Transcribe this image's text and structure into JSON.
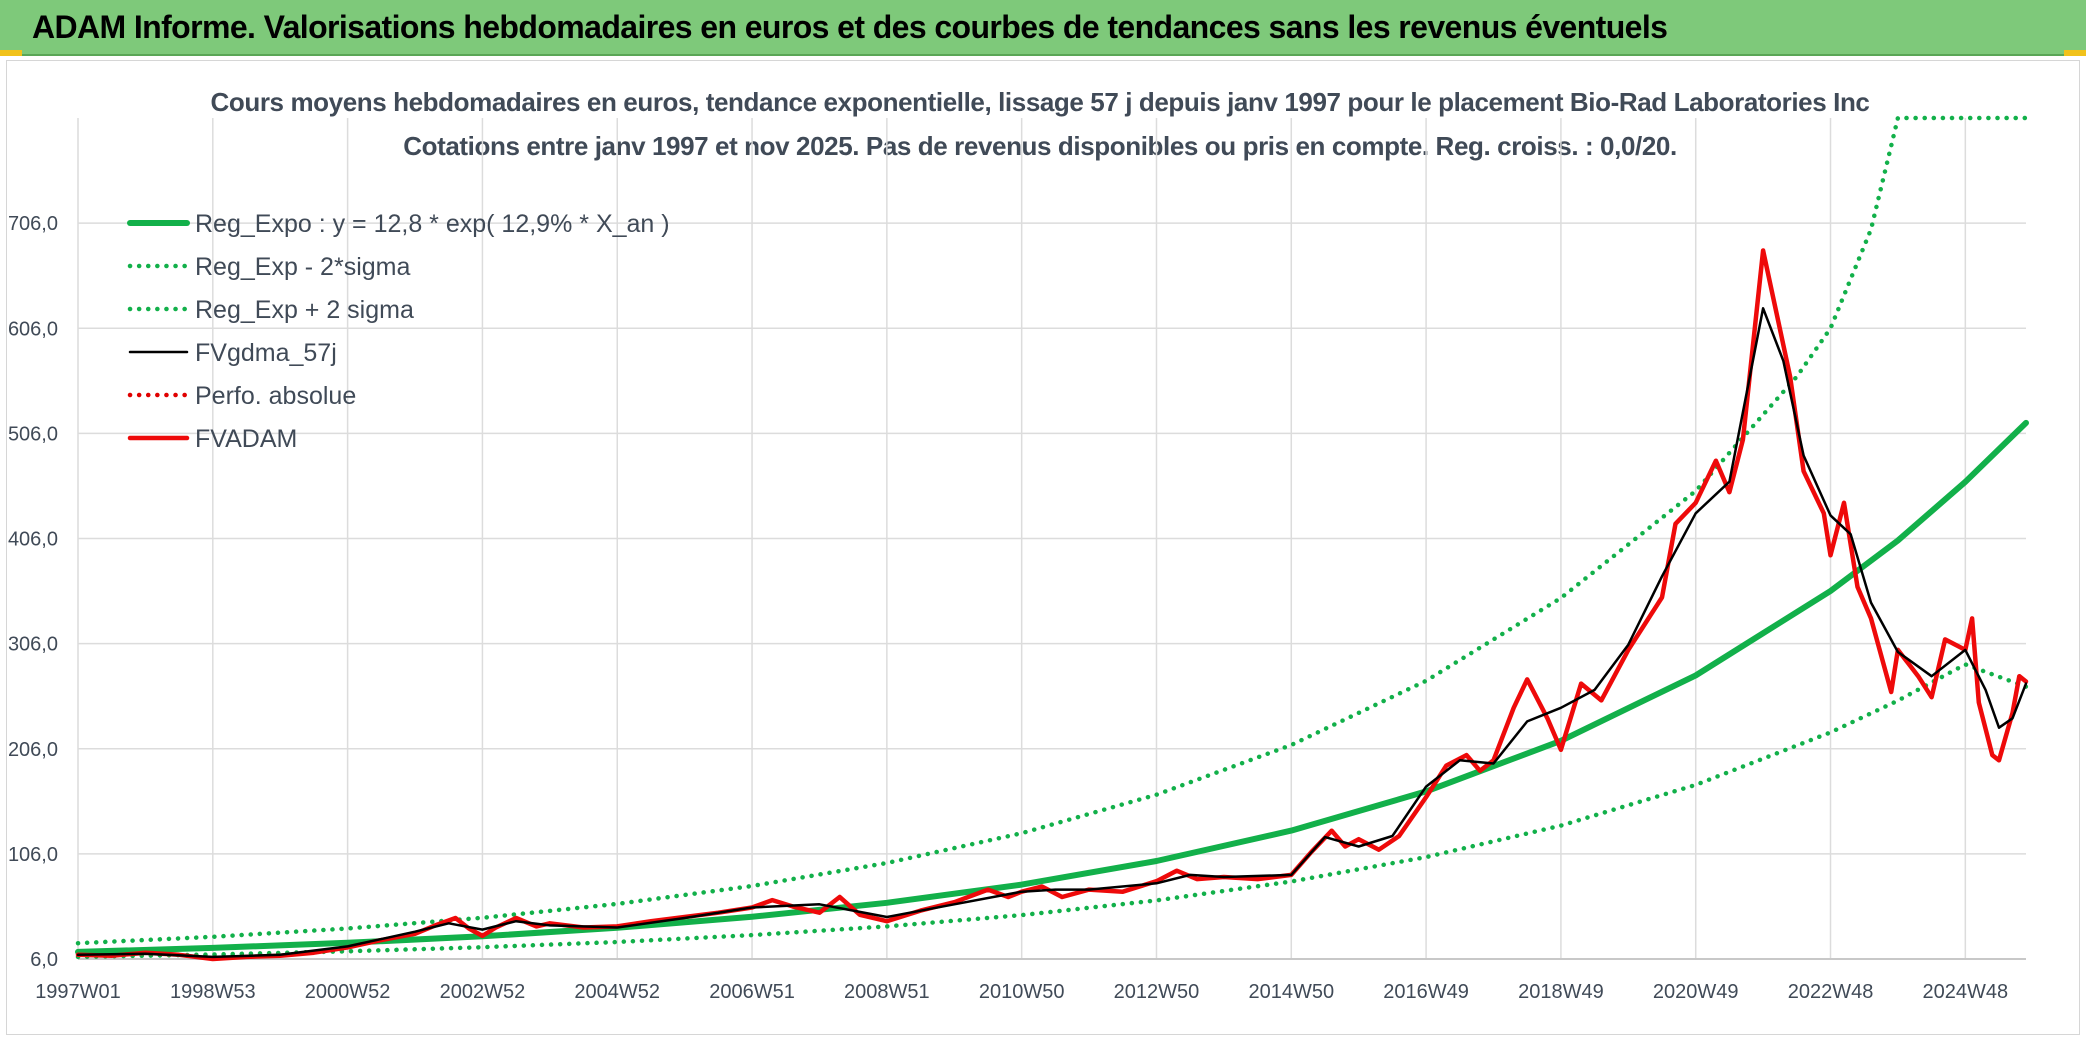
{
  "header": {
    "title": "ADAM Informe. Valorisations hebdomadaires en euros et des courbes de tendances sans les revenus éventuels"
  },
  "colors": {
    "header_bg": "#7ec97a",
    "regression": "#12b04a",
    "sigma_bands": "#12b04a",
    "fvgdma": "#000000",
    "perfo": "#e00000",
    "fvadam": "#ee0a0a",
    "grid": "#dcdcdc",
    "text": "#404a57"
  },
  "chart_data": {
    "type": "line",
    "title": "Cours moyens hebdomadaires en euros, tendance exponentielle, lissage 57 j depuis janv 1997 pour le placement Bio-Rad Laboratories Inc",
    "subtitle": "Cotations entre janv 1997 et nov 2025. Pas de revenus disponibles ou pris en compte. Reg. croiss. : 0,0/20.",
    "x_range": [
      1997.0,
      2025.9
    ],
    "ylim": [
      6,
      806
    ],
    "grid": true,
    "legend_placement": "top-left",
    "y_ticks": [
      "6,0",
      "106,0",
      "206,0",
      "306,0",
      "406,0",
      "506,0",
      "606,0",
      "706,0"
    ],
    "y_tick_values": [
      6,
      106,
      206,
      306,
      406,
      506,
      606,
      706
    ],
    "x_ticks": [
      "1997W01",
      "1998W53",
      "2000W52",
      "2002W52",
      "2004W52",
      "2006W51",
      "2008W51",
      "2010W50",
      "2012W50",
      "2014W50",
      "2016W49",
      "2018W49",
      "2020W49",
      "2022W48",
      "2024W48"
    ],
    "x_tick_values": [
      1997.0,
      1999.0,
      2001.0,
      2003.0,
      2005.0,
      2007.0,
      2009.0,
      2011.0,
      2013.0,
      2015.0,
      2017.0,
      2019.0,
      2021.0,
      2023.0,
      2025.0
    ],
    "series": [
      {
        "name": "Reg_Expo : y = 12,8 * exp( 12,9% *  X_an )",
        "style": "solid-thick",
        "color": "#12b04a",
        "points": [
          [
            1997.0,
            12.8
          ],
          [
            1999.0,
            16.6
          ],
          [
            2001.0,
            21.4
          ],
          [
            2003.0,
            27.6
          ],
          [
            2005.0,
            35.7
          ],
          [
            2007.0,
            46.1
          ],
          [
            2009.0,
            59.5
          ],
          [
            2011.0,
            76.8
          ],
          [
            2013.0,
            99.2
          ],
          [
            2015.0,
            128.1
          ],
          [
            2017.0,
            165.4
          ],
          [
            2019.0,
            213.6
          ],
          [
            2021.0,
            275.8
          ],
          [
            2023.0,
            356.1
          ],
          [
            2024.0,
            404.1
          ],
          [
            2025.0,
            459.8
          ],
          [
            2025.9,
            516.0
          ]
        ]
      },
      {
        "name": "Reg_Exp - 2*sigma",
        "style": "dotted",
        "color": "#12b04a",
        "points": [
          [
            1997.0,
            8
          ],
          [
            1999.0,
            10.3
          ],
          [
            2001.0,
            13.3
          ],
          [
            2003.0,
            17.2
          ],
          [
            2005.0,
            22.2
          ],
          [
            2007.0,
            28.7
          ],
          [
            2009.0,
            37
          ],
          [
            2011.0,
            47.8
          ],
          [
            2013.0,
            61.7
          ],
          [
            2015.0,
            79.7
          ],
          [
            2017.0,
            102.9
          ],
          [
            2019.0,
            132.9
          ],
          [
            2021.0,
            171.6
          ],
          [
            2023.0,
            221.6
          ],
          [
            2024.0,
            251.8
          ],
          [
            2025.0,
            286.2
          ],
          [
            2025.9,
            265
          ]
        ]
      },
      {
        "name": "Reg_Exp + 2 sigma",
        "style": "dotted",
        "color": "#12b04a",
        "points": [
          [
            1997.0,
            21
          ],
          [
            1999.0,
            27.1
          ],
          [
            2001.0,
            35
          ],
          [
            2003.0,
            45.2
          ],
          [
            2005.0,
            58.4
          ],
          [
            2007.0,
            75.4
          ],
          [
            2009.0,
            97.3
          ],
          [
            2011.0,
            125.7
          ],
          [
            2013.0,
            162.3
          ],
          [
            2015.0,
            209.6
          ],
          [
            2017.0,
            270.6
          ],
          [
            2019.0,
            349.4
          ],
          [
            2021.0,
            451.2
          ],
          [
            2022.5,
            560
          ],
          [
            2023.0,
            606
          ],
          [
            2023.6,
            700
          ],
          [
            2024.0,
            806
          ],
          [
            2025.9,
            806
          ]
        ]
      },
      {
        "name": "FVgdma_57j",
        "style": "solid",
        "color": "#000000",
        "points": [
          [
            1997.0,
            10
          ],
          [
            1998.0,
            11
          ],
          [
            1999.0,
            8
          ],
          [
            2000.0,
            10
          ],
          [
            2001.0,
            18
          ],
          [
            2002.0,
            32
          ],
          [
            2002.5,
            40
          ],
          [
            2003.0,
            34
          ],
          [
            2003.5,
            42
          ],
          [
            2004.0,
            38
          ],
          [
            2005.0,
            36
          ],
          [
            2006.0,
            45
          ],
          [
            2007.0,
            55
          ],
          [
            2008.0,
            58
          ],
          [
            2008.5,
            52
          ],
          [
            2009.0,
            46
          ],
          [
            2010.0,
            58
          ],
          [
            2011.0,
            70
          ],
          [
            2011.5,
            72
          ],
          [
            2012.0,
            72
          ],
          [
            2013.0,
            78
          ],
          [
            2013.5,
            86
          ],
          [
            2014.0,
            84
          ],
          [
            2015.0,
            86
          ],
          [
            2015.5,
            122
          ],
          [
            2016.0,
            113
          ],
          [
            2016.5,
            123
          ],
          [
            2017.0,
            170
          ],
          [
            2017.5,
            195
          ],
          [
            2018.0,
            192
          ],
          [
            2018.5,
            232
          ],
          [
            2019.0,
            245
          ],
          [
            2019.5,
            262
          ],
          [
            2020.0,
            305
          ],
          [
            2020.5,
            370
          ],
          [
            2021.0,
            430
          ],
          [
            2021.5,
            460
          ],
          [
            2022.0,
            625
          ],
          [
            2022.3,
            575
          ],
          [
            2022.6,
            485
          ],
          [
            2023.0,
            428
          ],
          [
            2023.3,
            410
          ],
          [
            2023.6,
            345
          ],
          [
            2024.0,
            298
          ],
          [
            2024.5,
            275
          ],
          [
            2025.0,
            300
          ],
          [
            2025.3,
            262
          ],
          [
            2025.5,
            226
          ],
          [
            2025.7,
            235
          ],
          [
            2025.9,
            268
          ]
        ]
      },
      {
        "name": "Perfo. absolue",
        "style": "dotted",
        "color": "#e00000",
        "points": []
      },
      {
        "name": "FVADAM",
        "style": "solid-thick",
        "color": "#ee0a0a",
        "points": [
          [
            1997.0,
            10
          ],
          [
            1997.5,
            9
          ],
          [
            1998.0,
            12
          ],
          [
            1998.5,
            10
          ],
          [
            1999.0,
            6
          ],
          [
            1999.5,
            8
          ],
          [
            2000.0,
            9
          ],
          [
            2000.5,
            12
          ],
          [
            2001.0,
            17
          ],
          [
            2001.5,
            24
          ],
          [
            2002.0,
            30
          ],
          [
            2002.3,
            38
          ],
          [
            2002.6,
            45
          ],
          [
            2002.8,
            35
          ],
          [
            2003.0,
            28
          ],
          [
            2003.2,
            36
          ],
          [
            2003.5,
            45
          ],
          [
            2003.8,
            37
          ],
          [
            2004.0,
            40
          ],
          [
            2004.5,
            36
          ],
          [
            2005.0,
            37
          ],
          [
            2005.5,
            42
          ],
          [
            2006.0,
            46
          ],
          [
            2006.5,
            50
          ],
          [
            2007.0,
            55
          ],
          [
            2007.3,
            62
          ],
          [
            2007.6,
            56
          ],
          [
            2008.0,
            50
          ],
          [
            2008.3,
            65
          ],
          [
            2008.6,
            48
          ],
          [
            2009.0,
            42
          ],
          [
            2009.5,
            52
          ],
          [
            2010.0,
            60
          ],
          [
            2010.5,
            72
          ],
          [
            2010.8,
            65
          ],
          [
            2011.0,
            70
          ],
          [
            2011.3,
            75
          ],
          [
            2011.6,
            65
          ],
          [
            2012.0,
            72
          ],
          [
            2012.5,
            70
          ],
          [
            2013.0,
            80
          ],
          [
            2013.3,
            90
          ],
          [
            2013.6,
            82
          ],
          [
            2014.0,
            84
          ],
          [
            2014.5,
            82
          ],
          [
            2015.0,
            86
          ],
          [
            2015.3,
            108
          ],
          [
            2015.6,
            128
          ],
          [
            2015.8,
            113
          ],
          [
            2016.0,
            120
          ],
          [
            2016.3,
            110
          ],
          [
            2016.6,
            123
          ],
          [
            2017.0,
            160
          ],
          [
            2017.3,
            190
          ],
          [
            2017.6,
            200
          ],
          [
            2017.8,
            185
          ],
          [
            2018.0,
            195
          ],
          [
            2018.3,
            245
          ],
          [
            2018.5,
            272
          ],
          [
            2018.8,
            235
          ],
          [
            2019.0,
            205
          ],
          [
            2019.3,
            268
          ],
          [
            2019.6,
            252
          ],
          [
            2020.0,
            300
          ],
          [
            2020.3,
            330
          ],
          [
            2020.5,
            350
          ],
          [
            2020.7,
            420
          ],
          [
            2021.0,
            440
          ],
          [
            2021.3,
            480
          ],
          [
            2021.5,
            450
          ],
          [
            2021.7,
            500
          ],
          [
            2022.0,
            680
          ],
          [
            2022.2,
            620
          ],
          [
            2022.4,
            560
          ],
          [
            2022.6,
            470
          ],
          [
            2022.9,
            430
          ],
          [
            2023.0,
            390
          ],
          [
            2023.2,
            440
          ],
          [
            2023.4,
            360
          ],
          [
            2023.6,
            330
          ],
          [
            2023.9,
            260
          ],
          [
            2024.0,
            300
          ],
          [
            2024.3,
            275
          ],
          [
            2024.5,
            255
          ],
          [
            2024.7,
            310
          ],
          [
            2025.0,
            300
          ],
          [
            2025.1,
            330
          ],
          [
            2025.2,
            250
          ],
          [
            2025.4,
            200
          ],
          [
            2025.5,
            195
          ],
          [
            2025.7,
            240
          ],
          [
            2025.8,
            275
          ],
          [
            2025.9,
            270
          ]
        ]
      }
    ]
  }
}
